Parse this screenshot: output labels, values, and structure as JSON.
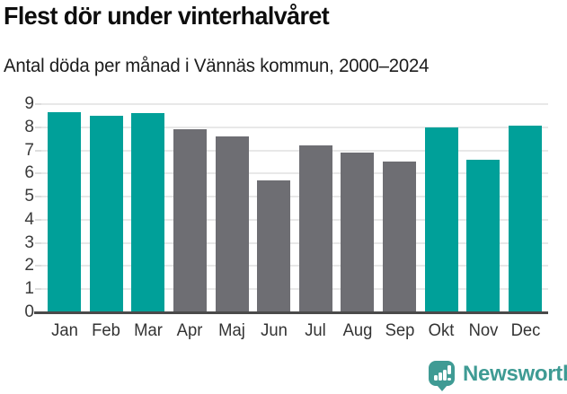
{
  "header": {
    "title": "Flest dör under vinterhalvåret",
    "subtitle": "Antal döda per månad i Vännäs kommun, 2000–2024"
  },
  "chart_data": {
    "type": "bar",
    "title": "Flest dör under vinterhalvåret",
    "subtitle": "Antal döda per månad i Vännäs kommun, 2000–2024",
    "categories": [
      "Jan",
      "Feb",
      "Mar",
      "Apr",
      "Maj",
      "Jun",
      "Jul",
      "Aug",
      "Sep",
      "Okt",
      "Nov",
      "Dec"
    ],
    "values": [
      8.65,
      8.5,
      8.6,
      7.9,
      7.6,
      5.7,
      7.2,
      6.9,
      6.5,
      8.0,
      6.6,
      8.05
    ],
    "highlighted": [
      true,
      true,
      true,
      false,
      false,
      false,
      false,
      false,
      false,
      true,
      true,
      true
    ],
    "xlabel": "",
    "ylabel": "",
    "ylim": [
      0,
      9
    ],
    "ytick_step": 1,
    "grid": true,
    "legend": "none",
    "colors": {
      "highlight": "#00a099",
      "base": "#6e6e73",
      "gridline": "#e8e8e8",
      "axis_line": "#4a4a4a",
      "tick": "#dddddd",
      "label": "#3a3a3a"
    }
  },
  "branding": {
    "name": "Newsworthy",
    "logo_icon": "newsworthy-bar-chart-speech-bubble-icon",
    "color": "#3f9b94"
  }
}
